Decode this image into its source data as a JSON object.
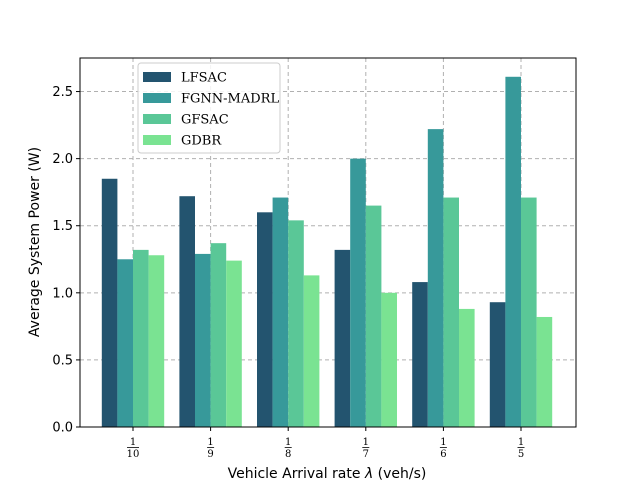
{
  "chart_data": {
    "type": "bar",
    "title": "",
    "xlabel_prefix": "Vehicle Arrival rate ",
    "xlabel_symbol": "λ",
    "xlabel_suffix": " (veh/s)",
    "ylabel": "Average System Power (W)",
    "ylim": [
      0,
      2.75
    ],
    "yticks": [
      "0.0",
      "0.5",
      "1.0",
      "1.5",
      "2.0",
      "2.5"
    ],
    "ytick_values": [
      0,
      0.5,
      1.0,
      1.5,
      2.0,
      2.5
    ],
    "categories": [
      {
        "num": "1",
        "den": "10"
      },
      {
        "num": "1",
        "den": "9"
      },
      {
        "num": "1",
        "den": "8"
      },
      {
        "num": "1",
        "den": "7"
      },
      {
        "num": "1",
        "den": "6"
      },
      {
        "num": "1",
        "den": "5"
      }
    ],
    "grid": true,
    "legend_position": "top-left",
    "series": [
      {
        "name": "LFSAC",
        "color": "#23546f",
        "values": [
          1.85,
          1.72,
          1.6,
          1.32,
          1.08,
          0.93
        ]
      },
      {
        "name": "FGNN-MADRL",
        "color": "#37999a",
        "values": [
          1.25,
          1.29,
          1.71,
          2.0,
          2.22,
          2.61
        ]
      },
      {
        "name": "GFSAC",
        "color": "#5ac797",
        "values": [
          1.32,
          1.37,
          1.54,
          1.65,
          1.71,
          1.71
        ]
      },
      {
        "name": "GDBR",
        "color": "#7ae392",
        "values": [
          1.28,
          1.24,
          1.13,
          1.0,
          0.88,
          0.82
        ]
      }
    ]
  }
}
